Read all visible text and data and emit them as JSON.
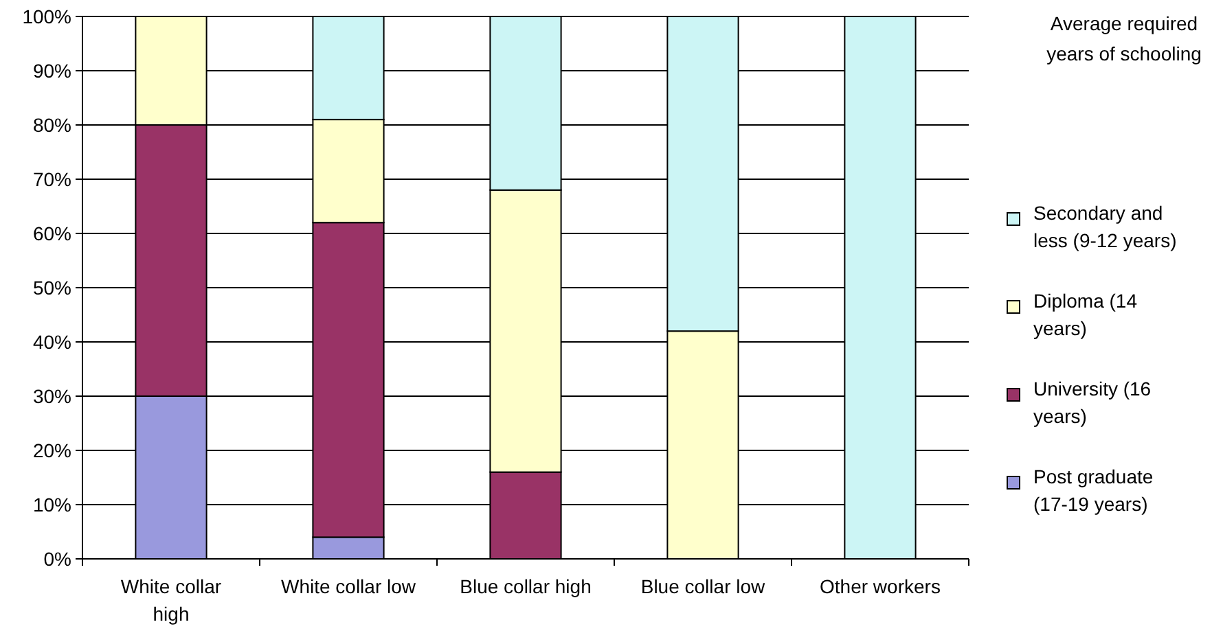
{
  "chart_data": {
    "type": "bar",
    "stacked": true,
    "legend_title": "Average required years of schooling",
    "legend": "right",
    "categories": [
      "White collar high",
      "White collar low",
      "Blue collar high",
      "Blue collar low",
      "Other workers"
    ],
    "series": [
      {
        "name": "Post graduate (17-19 years)",
        "color": "#9999dd",
        "values": [
          30,
          4,
          0,
          0,
          0
        ]
      },
      {
        "name": "University (16 years)",
        "color": "#993366",
        "values": [
          50,
          58,
          16,
          0,
          0
        ]
      },
      {
        "name": "Diploma (14 years)",
        "color": "#ffffcc",
        "values": [
          20,
          19,
          52,
          42,
          0
        ]
      },
      {
        "name": "Secondary and less (9-12 years)",
        "color": "#ccf5f5",
        "values": [
          0,
          19,
          32,
          58,
          100
        ]
      }
    ],
    "ylim": [
      0,
      100
    ],
    "yticks": [
      {
        "value": 0,
        "label": "0%"
      },
      {
        "value": 10,
        "label": "10%"
      },
      {
        "value": 20,
        "label": "20%"
      },
      {
        "value": 30,
        "label": "30%"
      },
      {
        "value": 40,
        "label": "40%"
      },
      {
        "value": 50,
        "label": "50%"
      },
      {
        "value": 60,
        "label": "60%"
      },
      {
        "value": 70,
        "label": "70%"
      },
      {
        "value": 80,
        "label": "80%"
      },
      {
        "value": 90,
        "label": "90%"
      },
      {
        "value": 100,
        "label": "100%"
      }
    ],
    "grid": "y"
  }
}
